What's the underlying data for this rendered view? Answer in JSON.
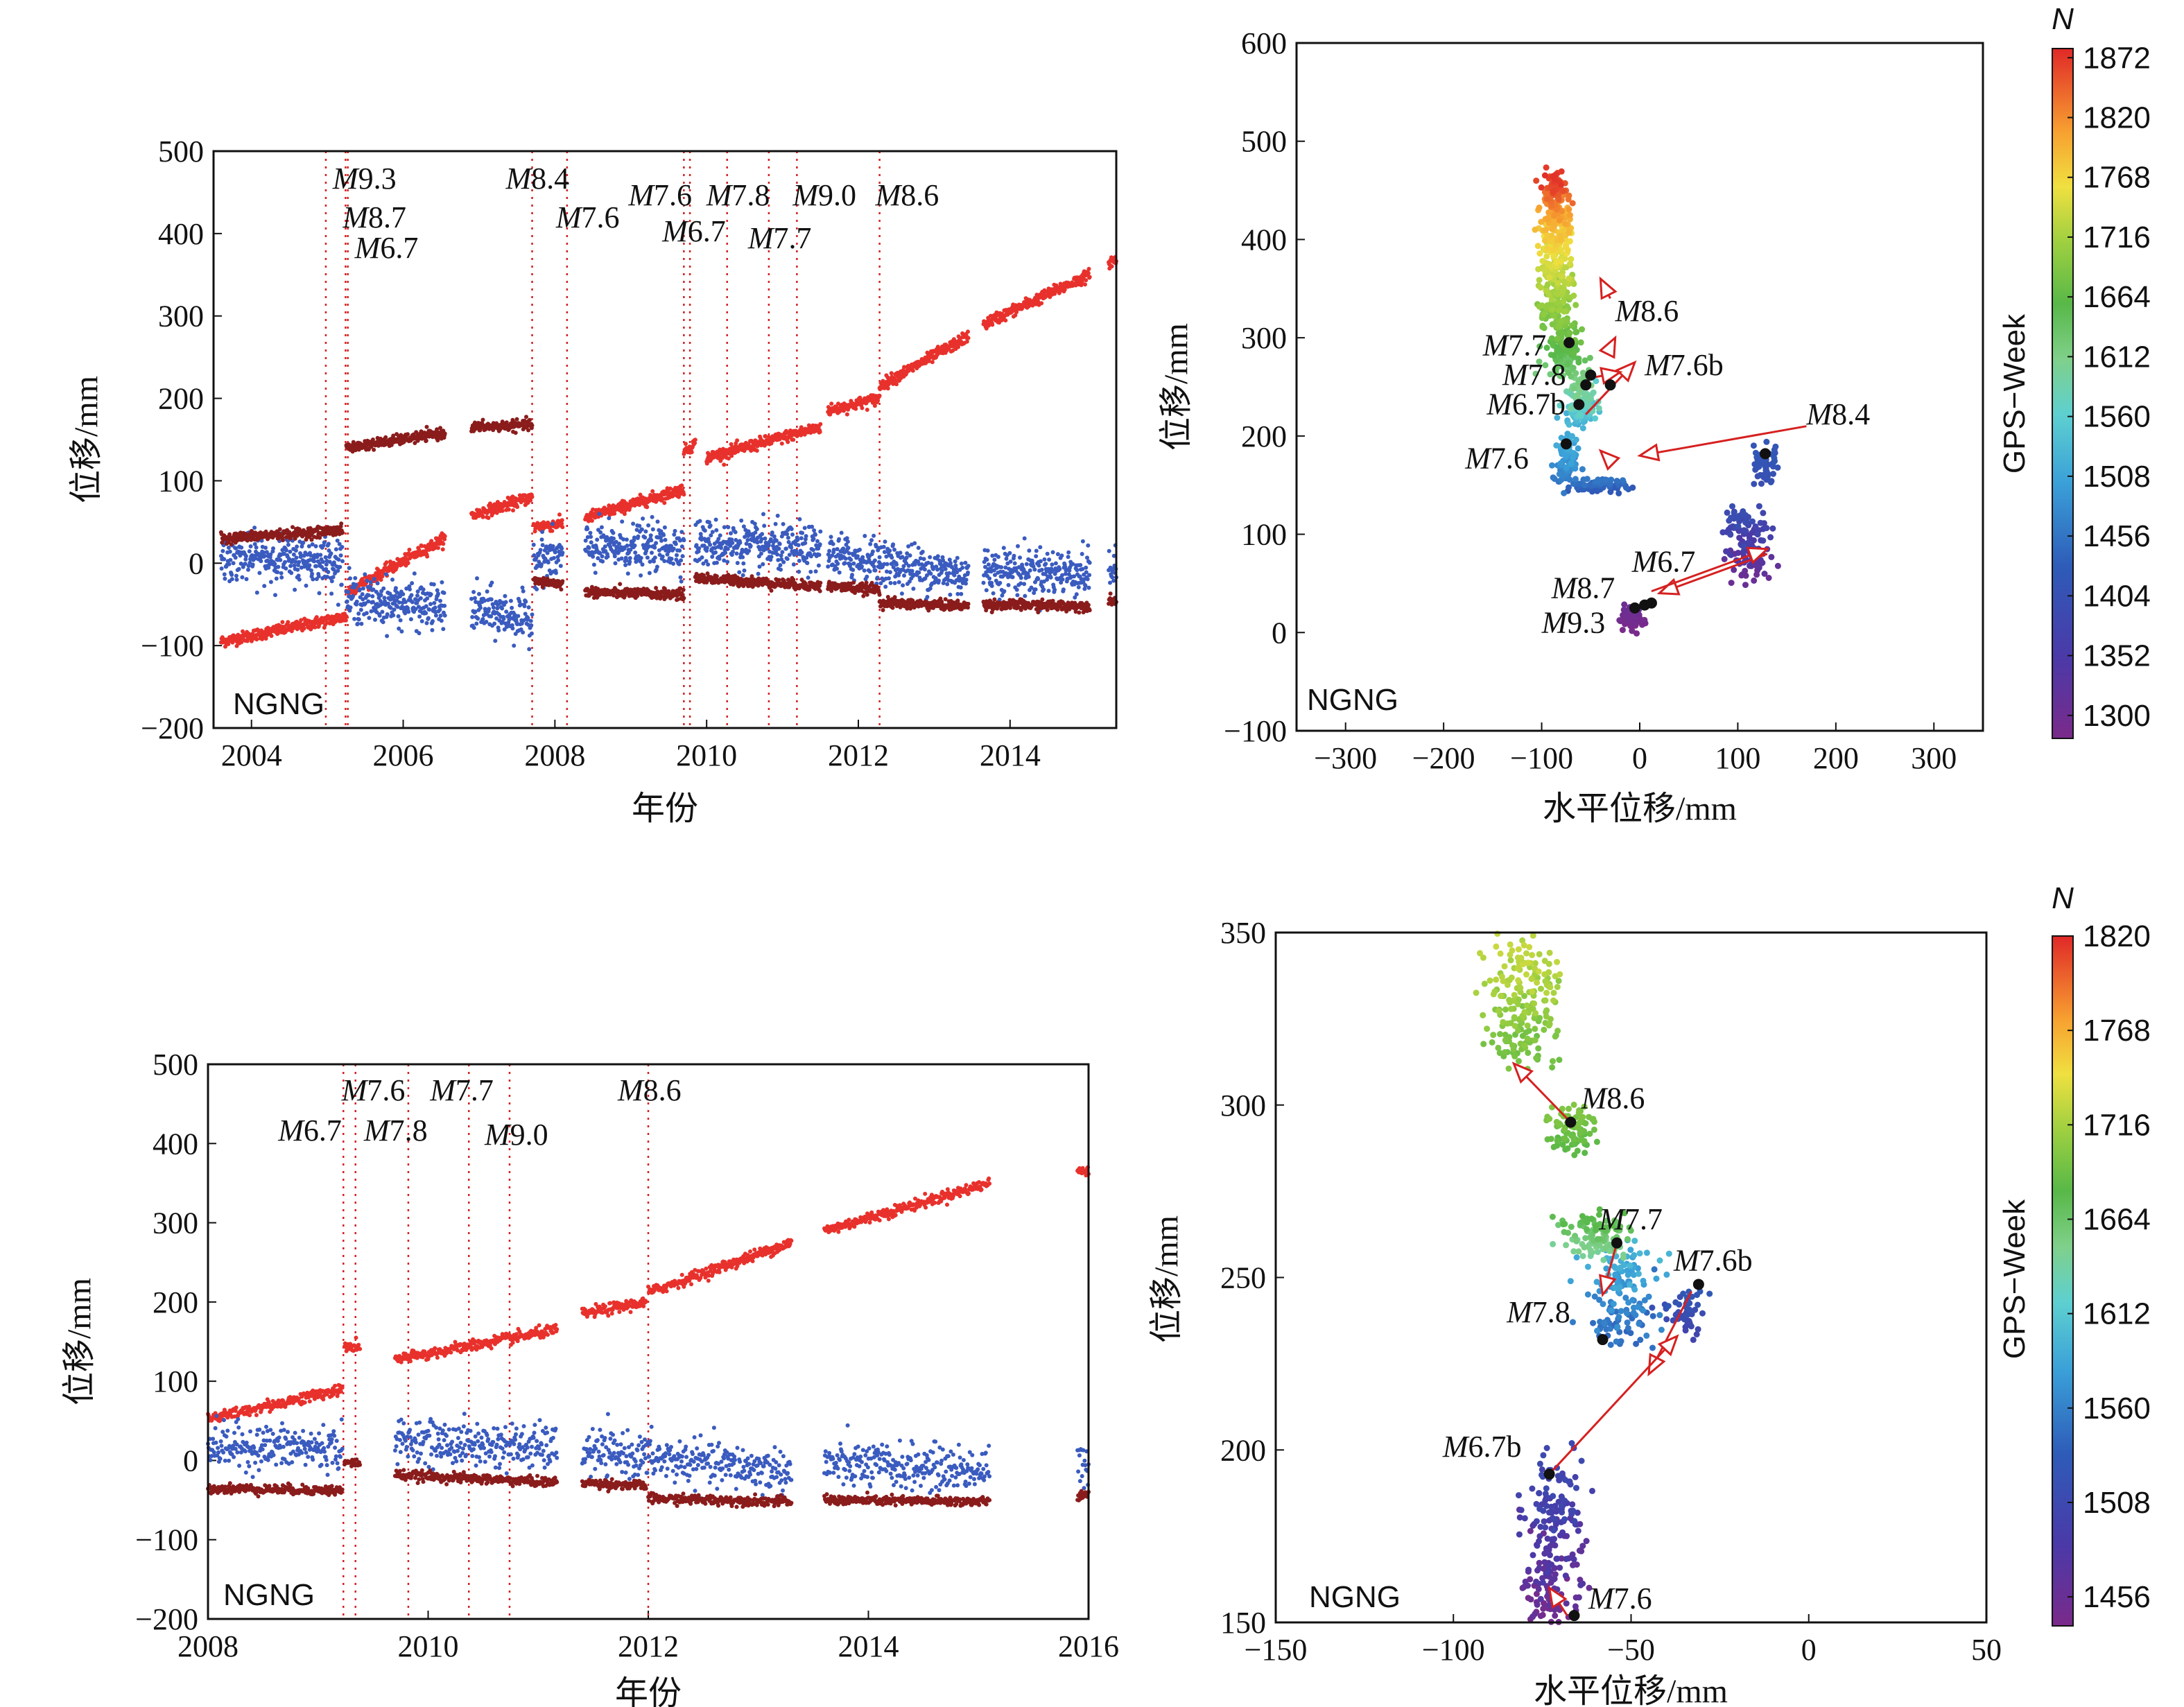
{
  "colors": {
    "east": "#e8312c",
    "north": "#3a5bbf",
    "up": "#8b1c1c",
    "arrow": "#d62020",
    "marker": "#111111"
  },
  "chart_data": [
    {
      "id": "ts-top",
      "type": "scatter",
      "xlabel": "年份",
      "ylabel": "位移/mm",
      "xlim": [
        2003.5,
        2015.4
      ],
      "ylim": [
        -200,
        500
      ],
      "xticks": [
        "2004",
        "2006",
        "2008",
        "2010",
        "2012",
        "2014"
      ],
      "yticks": [
        "500",
        "400",
        "300",
        "200",
        "100",
        "0",
        "−100",
        "−200"
      ],
      "station": "NGNG",
      "events": [
        {
          "label": "M9.3",
          "x": 2004.98
        },
        {
          "label": "M8.7",
          "x": 2005.24
        },
        {
          "label": "M6.7",
          "x": 2005.27
        },
        {
          "label": "M8.4",
          "x": 2007.7
        },
        {
          "label": "M7.6",
          "x": 2008.16
        },
        {
          "label": "M7.6",
          "x": 2009.7
        },
        {
          "label": "M6.7",
          "x": 2009.78
        },
        {
          "label": "M7.8",
          "x": 2010.27
        },
        {
          "label": "M7.7",
          "x": 2010.82
        },
        {
          "label": "M9.0",
          "x": 2011.19
        },
        {
          "label": "M8.6",
          "x": 2012.28
        }
      ],
      "series": [
        {
          "component": "east",
          "segments": [
            {
              "x0": 2003.6,
              "x1": 2005.25,
              "y0": -95,
              "y1": -65
            },
            {
              "x0": 2005.25,
              "x1": 2006.55,
              "y0": -35,
              "y1": 30
            },
            {
              "x0": 2006.9,
              "x1": 2007.7,
              "y0": 58,
              "y1": 80
            },
            {
              "x0": 2007.72,
              "x1": 2008.1,
              "y0": 44,
              "y1": 48
            },
            {
              "x0": 2008.4,
              "x1": 2009.7,
              "y0": 55,
              "y1": 90
            },
            {
              "x0": 2009.7,
              "x1": 2009.85,
              "y0": 135,
              "y1": 145
            },
            {
              "x0": 2010.0,
              "x1": 2011.5,
              "y0": 128,
              "y1": 165
            },
            {
              "x0": 2011.6,
              "x1": 2012.28,
              "y0": 185,
              "y1": 200
            },
            {
              "x0": 2012.28,
              "x1": 2013.45,
              "y0": 215,
              "y1": 275
            },
            {
              "x0": 2013.65,
              "x1": 2015.05,
              "y0": 290,
              "y1": 350
            },
            {
              "x0": 2015.3,
              "x1": 2015.4,
              "y0": 365,
              "y1": 368
            }
          ]
        },
        {
          "component": "north",
          "segments": [
            {
              "x0": 2003.6,
              "x1": 2005.2,
              "y0": 8,
              "y1": 2
            },
            {
              "x0": 2005.25,
              "x1": 2006.55,
              "y0": -42,
              "y1": -55
            },
            {
              "x0": 2006.9,
              "x1": 2007.7,
              "y0": -55,
              "y1": -70
            },
            {
              "x0": 2007.72,
              "x1": 2008.1,
              "y0": 5,
              "y1": 8
            },
            {
              "x0": 2008.4,
              "x1": 2009.7,
              "y0": 18,
              "y1": 20
            },
            {
              "x0": 2009.85,
              "x1": 2011.5,
              "y0": 25,
              "y1": 15
            },
            {
              "x0": 2011.6,
              "x1": 2013.45,
              "y0": 10,
              "y1": -15
            },
            {
              "x0": 2013.65,
              "x1": 2015.05,
              "y0": -8,
              "y1": -12
            },
            {
              "x0": 2015.3,
              "x1": 2015.4,
              "y0": -5,
              "y1": -10
            }
          ]
        },
        {
          "component": "up",
          "segments": [
            {
              "x0": 2003.6,
              "x1": 2005.2,
              "y0": 30,
              "y1": 40
            },
            {
              "x0": 2005.25,
              "x1": 2006.55,
              "y0": 140,
              "y1": 158
            },
            {
              "x0": 2006.9,
              "x1": 2007.7,
              "y0": 165,
              "y1": 168
            },
            {
              "x0": 2007.72,
              "x1": 2008.1,
              "y0": -22,
              "y1": -25
            },
            {
              "x0": 2008.4,
              "x1": 2009.7,
              "y0": -35,
              "y1": -38
            },
            {
              "x0": 2009.85,
              "x1": 2011.5,
              "y0": -18,
              "y1": -28
            },
            {
              "x0": 2011.6,
              "x1": 2012.28,
              "y0": -28,
              "y1": -32
            },
            {
              "x0": 2012.28,
              "x1": 2013.45,
              "y0": -48,
              "y1": -52
            },
            {
              "x0": 2013.65,
              "x1": 2015.05,
              "y0": -50,
              "y1": -52
            },
            {
              "x0": 2015.3,
              "x1": 2015.4,
              "y0": -45,
              "y1": -45
            }
          ]
        }
      ]
    },
    {
      "id": "hz-top",
      "type": "scatter",
      "xlabel": "水平位移/mm",
      "ylabel": "位移/mm",
      "xlim": [
        -350,
        350
      ],
      "ylim": [
        -100,
        600
      ],
      "xticks": [
        "−300",
        "−200",
        "−100",
        "0",
        "100",
        "200",
        "300"
      ],
      "yticks": [
        "600",
        "500",
        "400",
        "300",
        "200",
        "100",
        "0",
        "−100"
      ],
      "station": "NGNG",
      "colorbar": {
        "title": "N",
        "label": "GPS−Week",
        "min": 1280,
        "max": 1880,
        "ticks": [
          "1872",
          "1820",
          "1768",
          "1716",
          "1664",
          "1612",
          "1560",
          "1508",
          "1456",
          "1404",
          "1352",
          "1300"
        ]
      },
      "clusters": [
        {
          "cx": -10,
          "cy": 15,
          "rx": 6,
          "ry": 10,
          "w0": 1280,
          "w1": 1300,
          "n": 60
        },
        {
          "cx": 110,
          "cy": 90,
          "rx": 12,
          "ry": 30,
          "w0": 1300,
          "w1": 1400,
          "n": 140
        },
        {
          "cx": 128,
          "cy": 170,
          "rx": 5,
          "ry": 15,
          "w0": 1400,
          "w1": 1420,
          "n": 60
        },
        {
          "cx": -45,
          "cy": 150,
          "rx": 16,
          "ry": 5,
          "w0": 1420,
          "w1": 1460,
          "n": 80
        },
        {
          "cx": -75,
          "cy": 175,
          "rx": 6,
          "ry": 20,
          "w0": 1460,
          "w1": 1520,
          "n": 90
        },
        {
          "cx": -60,
          "cy": 235,
          "rx": 8,
          "ry": 20,
          "w0": 1520,
          "w1": 1620,
          "n": 140
        },
        {
          "cx": -78,
          "cy": 285,
          "rx": 10,
          "ry": 20,
          "w0": 1620,
          "w1": 1680,
          "n": 120
        },
        {
          "cx": -85,
          "cy": 345,
          "rx": 8,
          "ry": 30,
          "w0": 1680,
          "w1": 1740,
          "n": 160
        },
        {
          "cx": -85,
          "cy": 400,
          "rx": 8,
          "ry": 25,
          "w0": 1740,
          "w1": 1800,
          "n": 130
        },
        {
          "cx": -85,
          "cy": 445,
          "rx": 7,
          "ry": 20,
          "w0": 1800,
          "w1": 1875,
          "n": 110
        }
      ],
      "events": [
        {
          "label": "M9.3",
          "x": -5,
          "y": 25,
          "lx": -100,
          "ly": 0
        },
        {
          "label": "M8.7",
          "x": 5,
          "y": 28,
          "lx": -90,
          "ly": 35
        },
        {
          "label": "M6.7",
          "x": 12,
          "y": 30,
          "lx": -8,
          "ly": 62
        },
        {
          "label": "M8.4",
          "x": 128,
          "y": 182,
          "lx": 170,
          "ly": 212
        },
        {
          "label": "M7.6",
          "x": -75,
          "y": 192,
          "lx": -178,
          "ly": 167
        },
        {
          "label": "M6.7b",
          "x": -62,
          "y": 232,
          "lx": -156,
          "ly": 222
        },
        {
          "label": "M7.8",
          "x": -55,
          "y": 252,
          "lx": -140,
          "ly": 252
        },
        {
          "label": "M7.7",
          "x": -72,
          "y": 295,
          "lx": -160,
          "ly": 282
        },
        {
          "label": "M7.6b",
          "x": -30,
          "y": 252,
          "lx": 5,
          "ly": 262
        },
        {
          "label": "M8.6",
          "x": -50,
          "y": 262,
          "lx": -25,
          "ly": 317
        }
      ],
      "arrows": [
        {
          "x0": 170,
          "y0": 210,
          "x1": 0,
          "y1": 180
        },
        {
          "x0": 130,
          "y0": 80,
          "x1": 20,
          "y1": 40
        },
        {
          "x0": 12,
          "y0": 42,
          "x1": 130,
          "y1": 85
        },
        {
          "x0": -55,
          "y0": 222,
          "x1": -5,
          "y1": 275
        },
        {
          "x0": -45,
          "y0": 260,
          "x1": -20,
          "y1": 265
        },
        {
          "x0": -30,
          "y0": 290,
          "x1": -25,
          "y1": 300
        },
        {
          "x0": -30,
          "y0": 340,
          "x1": -40,
          "y1": 360
        },
        {
          "x0": -30,
          "y0": 175,
          "x1": -40,
          "y1": 185
        }
      ]
    },
    {
      "id": "ts-bottom",
      "type": "scatter",
      "xlabel": "年份",
      "ylabel": "位移/mm",
      "xlim": [
        2008,
        2016
      ],
      "ylim": [
        -200,
        500
      ],
      "xticks": [
        "2008",
        "2010",
        "2012",
        "2014",
        "2016"
      ],
      "yticks": [
        "500",
        "400",
        "300",
        "200",
        "100",
        "0",
        "−100",
        "−200"
      ],
      "station": "NGNG",
      "events": [
        {
          "label": "M6.7",
          "x": 2009.23
        },
        {
          "label": "M7.6",
          "x": 2009.34
        },
        {
          "label": "M7.8",
          "x": 2009.82
        },
        {
          "label": "M7.7",
          "x": 2010.37
        },
        {
          "label": "M9.0",
          "x": 2010.74
        },
        {
          "label": "M8.6",
          "x": 2012.0
        }
      ],
      "series": [
        {
          "component": "east",
          "segments": [
            {
              "x0": 2008.0,
              "x1": 2009.22,
              "y0": 52,
              "y1": 90
            },
            {
              "x0": 2009.24,
              "x1": 2009.38,
              "y0": 142,
              "y1": 145
            },
            {
              "x0": 2009.7,
              "x1": 2011.17,
              "y0": 127,
              "y1": 165
            },
            {
              "x0": 2011.4,
              "x1": 2011.98,
              "y0": 185,
              "y1": 200
            },
            {
              "x0": 2012.0,
              "x1": 2013.3,
              "y0": 212,
              "y1": 275
            },
            {
              "x0": 2013.6,
              "x1": 2015.1,
              "y0": 290,
              "y1": 350
            },
            {
              "x0": 2015.9,
              "x1": 2016.0,
              "y0": 365,
              "y1": 368
            }
          ]
        },
        {
          "component": "north",
          "segments": [
            {
              "x0": 2008.0,
              "x1": 2009.22,
              "y0": 18,
              "y1": 15
            },
            {
              "x0": 2009.7,
              "x1": 2011.17,
              "y0": 25,
              "y1": 15
            },
            {
              "x0": 2011.4,
              "x1": 2013.3,
              "y0": 12,
              "y1": -15
            },
            {
              "x0": 2013.6,
              "x1": 2015.1,
              "y0": -5,
              "y1": -12
            },
            {
              "x0": 2015.9,
              "x1": 2016.0,
              "y0": 0,
              "y1": -20
            }
          ]
        },
        {
          "component": "up",
          "segments": [
            {
              "x0": 2008.0,
              "x1": 2009.22,
              "y0": -35,
              "y1": -38
            },
            {
              "x0": 2009.24,
              "x1": 2009.38,
              "y0": -3,
              "y1": -3
            },
            {
              "x0": 2009.7,
              "x1": 2011.17,
              "y0": -18,
              "y1": -28
            },
            {
              "x0": 2011.4,
              "x1": 2011.98,
              "y0": -28,
              "y1": -32
            },
            {
              "x0": 2012.0,
              "x1": 2013.3,
              "y0": -48,
              "y1": -52
            },
            {
              "x0": 2013.6,
              "x1": 2015.1,
              "y0": -50,
              "y1": -52
            },
            {
              "x0": 2015.9,
              "x1": 2016.0,
              "y0": -45,
              "y1": -45
            }
          ]
        }
      ]
    },
    {
      "id": "hz-bottom",
      "type": "scatter",
      "xlabel": "水平位移/mm",
      "ylabel": "位移/mm",
      "xlim": [
        -150,
        50
      ],
      "ylim": [
        150,
        350
      ],
      "xticks": [
        "−150",
        "−100",
        "−50",
        "0",
        "50"
      ],
      "yticks": [
        "350",
        "300",
        "250",
        "200",
        "150"
      ],
      "station": "NGNG",
      "colorbar": {
        "title": "N",
        "label": "GPS−Week",
        "min": 1440,
        "max": 1820,
        "ticks": [
          "1820",
          "1768",
          "1716",
          "1664",
          "1612",
          "1560",
          "1508",
          "1456"
        ]
      },
      "clusters": [
        {
          "cx": -72,
          "cy": 170,
          "rx": 4,
          "ry": 22,
          "w0": 1440,
          "w1": 1510,
          "n": 240
        },
        {
          "cx": -35,
          "cy": 240,
          "rx": 3,
          "ry": 5,
          "w0": 1500,
          "w1": 1530,
          "n": 50
        },
        {
          "cx": -53,
          "cy": 245,
          "rx": 5,
          "ry": 12,
          "w0": 1540,
          "w1": 1600,
          "n": 160
        },
        {
          "cx": -60,
          "cy": 262,
          "rx": 5,
          "ry": 5,
          "w0": 1640,
          "w1": 1680,
          "n": 110
        },
        {
          "cx": -67,
          "cy": 293,
          "rx": 3,
          "ry": 5,
          "w0": 1680,
          "w1": 1700,
          "n": 90
        },
        {
          "cx": -80,
          "cy": 330,
          "rx": 5,
          "ry": 15,
          "w0": 1690,
          "w1": 1730,
          "n": 200
        }
      ],
      "events": [
        {
          "label": "M8.6",
          "x": -67,
          "y": 295,
          "lx": -64,
          "ly": 299
        },
        {
          "label": "M7.7",
          "x": -54,
          "y": 260,
          "lx": -59,
          "ly": 264
        },
        {
          "label": "M7.6b",
          "x": -31,
          "y": 248,
          "lx": -38,
          "ly": 252
        },
        {
          "label": "M7.8",
          "x": -58,
          "y": 232,
          "lx": -85,
          "ly": 237
        },
        {
          "label": "M6.7b",
          "x": -73,
          "y": 193,
          "lx": -103,
          "ly": 198
        },
        {
          "label": "M7.6",
          "x": -66,
          "y": 152,
          "lx": -62,
          "ly": 154
        }
      ],
      "arrows": [
        {
          "x0": -67,
          "y0": 295,
          "x1": -83,
          "y1": 312
        },
        {
          "x0": -54,
          "y0": 260,
          "x1": -58,
          "y1": 245
        },
        {
          "x0": -33,
          "y0": 246,
          "x1": -45,
          "y1": 222
        },
        {
          "x0": -73,
          "y0": 193,
          "x1": -37,
          "y1": 233
        },
        {
          "x0": -68,
          "y0": 152,
          "x1": -73,
          "y1": 160
        }
      ]
    }
  ]
}
